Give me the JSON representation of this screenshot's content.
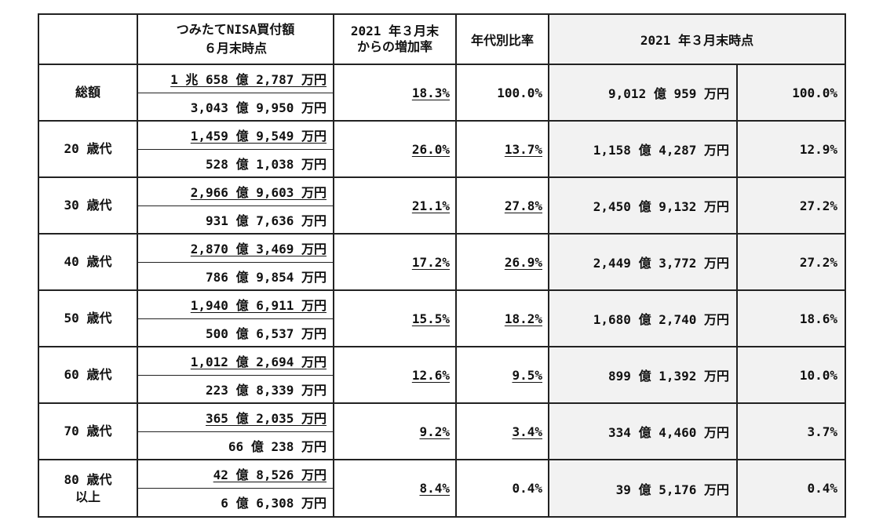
{
  "header": {
    "col_amount_line1": "つみたてNISA買付額",
    "col_amount_line2": "６月末時点",
    "col_growth_line1": "2021 年３月末",
    "col_growth_line2": "からの増加率",
    "col_ratio": "年代別比率",
    "col_march": "2021 年３月末時点"
  },
  "rows": [
    {
      "age": "総額",
      "age2": "",
      "amount_june": "1 兆 658 億 2,787 万円",
      "amount_diff": "3,043 億 9,950 万円",
      "growth": "18.3%",
      "ratio": "100.0%",
      "march_amount": "9,012 億 959 万円",
      "march_ratio": "100.0%"
    },
    {
      "age": "20 歳代",
      "age2": "",
      "amount_june": "1,459 億 9,549 万円",
      "amount_diff": "528 億 1,038 万円",
      "growth": "26.0%",
      "ratio": "13.7%",
      "march_amount": "1,158 億 4,287 万円",
      "march_ratio": "12.9%"
    },
    {
      "age": "30 歳代",
      "age2": "",
      "amount_june": "2,966 億 9,603 万円",
      "amount_diff": "931 億 7,636 万円",
      "growth": "21.1%",
      "ratio": "27.8%",
      "march_amount": "2,450 億 9,132 万円",
      "march_ratio": "27.2%"
    },
    {
      "age": "40 歳代",
      "age2": "",
      "amount_june": "2,870 億 3,469 万円",
      "amount_diff": "786 億 9,854 万円",
      "growth": "17.2%",
      "ratio": "26.9%",
      "march_amount": "2,449 億 3,772 万円",
      "march_ratio": "27.2%"
    },
    {
      "age": "50 歳代",
      "age2": "",
      "amount_june": "1,940 億 6,911 万円",
      "amount_diff": "500 億 6,537 万円",
      "growth": "15.5%",
      "ratio": "18.2%",
      "march_amount": "1,680 億 2,740 万円",
      "march_ratio": "18.6%"
    },
    {
      "age": "60 歳代",
      "age2": "",
      "amount_june": "1,012 億 2,694 万円",
      "amount_diff": "223 億 8,339 万円",
      "growth": "12.6%",
      "ratio": "9.5%",
      "march_amount": "899 億 1,392 万円",
      "march_ratio": "10.0%"
    },
    {
      "age": "70 歳代",
      "age2": "",
      "amount_june": "365 億 2,035 万円",
      "amount_diff": "66 億 238 万円",
      "growth": "9.2%",
      "ratio": "3.4%",
      "march_amount": "334 億 4,460 万円",
      "march_ratio": "3.7%"
    },
    {
      "age": "80 歳代",
      "age2": "以上",
      "amount_june": "42 億 8,526 万円",
      "amount_diff": "6 億 6,308 万円",
      "growth": "8.4%",
      "ratio": "0.4%",
      "march_amount": "39 億 5,176 万円",
      "march_ratio": "0.4%"
    }
  ]
}
